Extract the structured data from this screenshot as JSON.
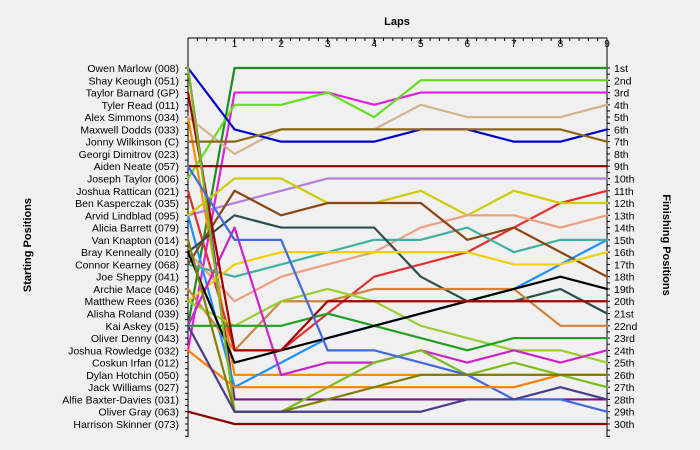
{
  "chart_data": {
    "type": "line",
    "title": "",
    "xlabel": "Laps",
    "ylabel_left": "Starting Positions",
    "ylabel_right": "Finishing Positions",
    "laps": [
      "1",
      "2",
      "3",
      "4",
      "5",
      "6",
      "7",
      "8",
      "9"
    ],
    "finishing_labels": [
      "1st",
      "2nd",
      "3rd",
      "4th",
      "5th",
      "6th",
      "7th",
      "8th",
      "9th",
      "10th",
      "11th",
      "12th",
      "13th",
      "14th",
      "15th",
      "16th",
      "17th",
      "18th",
      "19th",
      "20th",
      "21st",
      "22nd",
      "23rd",
      "24th",
      "25th",
      "26th",
      "27th",
      "28th",
      "29th",
      "30th"
    ],
    "y_range": [
      1,
      30
    ],
    "grid": false,
    "series": [
      {
        "name": "Owen Marlow (008)",
        "color": "#228B22",
        "positions": [
          22,
          1,
          1,
          1,
          1,
          1,
          1,
          1,
          1,
          1
        ]
      },
      {
        "name": "Shay Keough (051)",
        "color": "#7B1080",
        "positions": [
          1,
          28,
          28,
          28,
          28,
          28,
          28,
          28,
          28,
          28
        ]
      },
      {
        "name": "Taylor Barnard (GP)",
        "color": "#E020E0",
        "positions": [
          24,
          3,
          3,
          3,
          4,
          3,
          3,
          3,
          3,
          3
        ]
      },
      {
        "name": "Tyler Read (011)",
        "color": "#FF8C00",
        "positions": [
          5,
          26,
          26,
          26,
          26,
          26,
          26,
          26,
          26,
          26
        ]
      },
      {
        "name": "Alex Simmons (034)",
        "color": "#66DD22",
        "positions": [
          10,
          4,
          4,
          3,
          5,
          2,
          2,
          2,
          2,
          2
        ]
      },
      {
        "name": "Maxwell Dodds (033)",
        "color": "#D2B48C",
        "positions": [
          5,
          8,
          6,
          6,
          6,
          4,
          5,
          5,
          5,
          4
        ]
      },
      {
        "name": "Jonny Wilkinson (C)",
        "color": "#0000CD",
        "positions": [
          1,
          6,
          7,
          7,
          7,
          6,
          6,
          7,
          7,
          6
        ]
      },
      {
        "name": "Georgi Dimitrov (023)",
        "color": "#8B6914",
        "positions": [
          7,
          7,
          6,
          6,
          6,
          6,
          6,
          6,
          6,
          7
        ]
      },
      {
        "name": "Aiden Neate (057)",
        "color": "#800000",
        "positions": [
          9,
          9,
          9,
          9,
          9,
          9,
          9,
          9,
          9,
          9
        ]
      },
      {
        "name": "Joseph Taylor (006)",
        "color": "#B07DE0",
        "positions": [
          13,
          12,
          11,
          10,
          10,
          10,
          10,
          10,
          10,
          10
        ]
      },
      {
        "name": "Joshua Rattican (021)",
        "color": "#E03030",
        "positions": [
          11,
          24,
          24,
          21,
          18,
          17,
          16,
          14,
          12,
          11
        ]
      },
      {
        "name": "Ben Kasperczak (035)",
        "color": "#1E90FF",
        "positions": [
          13,
          27,
          25,
          23,
          22,
          21,
          20,
          19,
          17,
          15
        ]
      },
      {
        "name": "Arvid Lindblad (095)",
        "color": "#CCCC00",
        "positions": [
          13,
          10,
          10,
          12,
          12,
          11,
          13,
          11,
          12,
          12
        ]
      },
      {
        "name": "Alicia Barrett (079)",
        "color": "#E8A080",
        "positions": [
          16,
          20,
          18,
          17,
          16,
          14,
          13,
          13,
          14,
          13
        ]
      },
      {
        "name": "Van Knapton (014)",
        "color": "#40B0A0",
        "positions": [
          17,
          18,
          17,
          16,
          15,
          15,
          14,
          16,
          15,
          15
        ]
      },
      {
        "name": "Bray Kenneally (010)",
        "color": "#8B4513",
        "positions": [
          17,
          11,
          13,
          12,
          12,
          12,
          15,
          14,
          16,
          18
        ]
      },
      {
        "name": "Connor Kearney (068)",
        "color": "#2F4F4F",
        "positions": [
          16,
          13,
          14,
          14,
          14,
          18,
          20,
          20,
          19,
          21
        ]
      },
      {
        "name": "Joe Sheppy (041)",
        "color": "#F0D000",
        "positions": [
          20,
          17,
          16,
          16,
          16,
          16,
          16,
          17,
          17,
          16
        ]
      },
      {
        "name": "Archie Mace (046)",
        "color": "#CD853F",
        "positions": [
          19,
          24,
          20,
          20,
          19,
          19,
          19,
          19,
          22,
          22
        ]
      },
      {
        "name": "Matthew Rees (036)",
        "color": "#9ACD32",
        "positions": [
          20,
          22,
          20,
          19,
          20,
          22,
          23,
          24,
          24,
          25
        ]
      },
      {
        "name": "Alisha Roland (039)",
        "color": "#CC22CC",
        "positions": [
          22,
          14,
          26,
          25,
          25,
          24,
          25,
          24,
          25,
          24
        ]
      },
      {
        "name": "Kai Askey (015)",
        "color": "#20A020",
        "positions": [
          22,
          22,
          22,
          21,
          22,
          23,
          24,
          23,
          23,
          23
        ]
      },
      {
        "name": "Oliver Denny (043)",
        "color": "#000000",
        "positions": [
          16,
          25,
          24,
          23,
          22,
          21,
          20,
          19,
          18,
          19
        ]
      },
      {
        "name": "Joshua Rowledge (032)",
        "color": "#A00000",
        "positions": [
          3,
          24,
          24,
          20,
          20,
          20,
          20,
          20,
          20,
          20
        ]
      },
      {
        "name": "Coskun Irfan (012)",
        "color": "#7CBB20",
        "positions": [
          1,
          29,
          29,
          27,
          25,
          24,
          26,
          25,
          26,
          27
        ]
      },
      {
        "name": "Dylan Hotchin (050)",
        "color": "#4169E1",
        "positions": [
          9,
          15,
          15,
          24,
          24,
          25,
          26,
          28,
          28,
          29
        ]
      },
      {
        "name": "Jack Williams (027)",
        "color": "#FF7F00",
        "positions": [
          24,
          27,
          27,
          27,
          27,
          27,
          27,
          27,
          26,
          26
        ]
      },
      {
        "name": "Alfie Baxter-Davies (031)",
        "color": "#808000",
        "positions": [
          15,
          29,
          29,
          28,
          27,
          26,
          26,
          26,
          26,
          26
        ]
      },
      {
        "name": "Oliver Gray (063)",
        "color": "#483D8B",
        "positions": [
          22,
          29,
          29,
          29,
          29,
          29,
          28,
          28,
          27,
          28
        ]
      },
      {
        "name": "Harrison Skinner (073)",
        "color": "#8B0000",
        "positions": [
          29,
          30,
          30,
          30,
          30,
          30,
          30,
          30,
          30,
          30
        ]
      }
    ]
  }
}
